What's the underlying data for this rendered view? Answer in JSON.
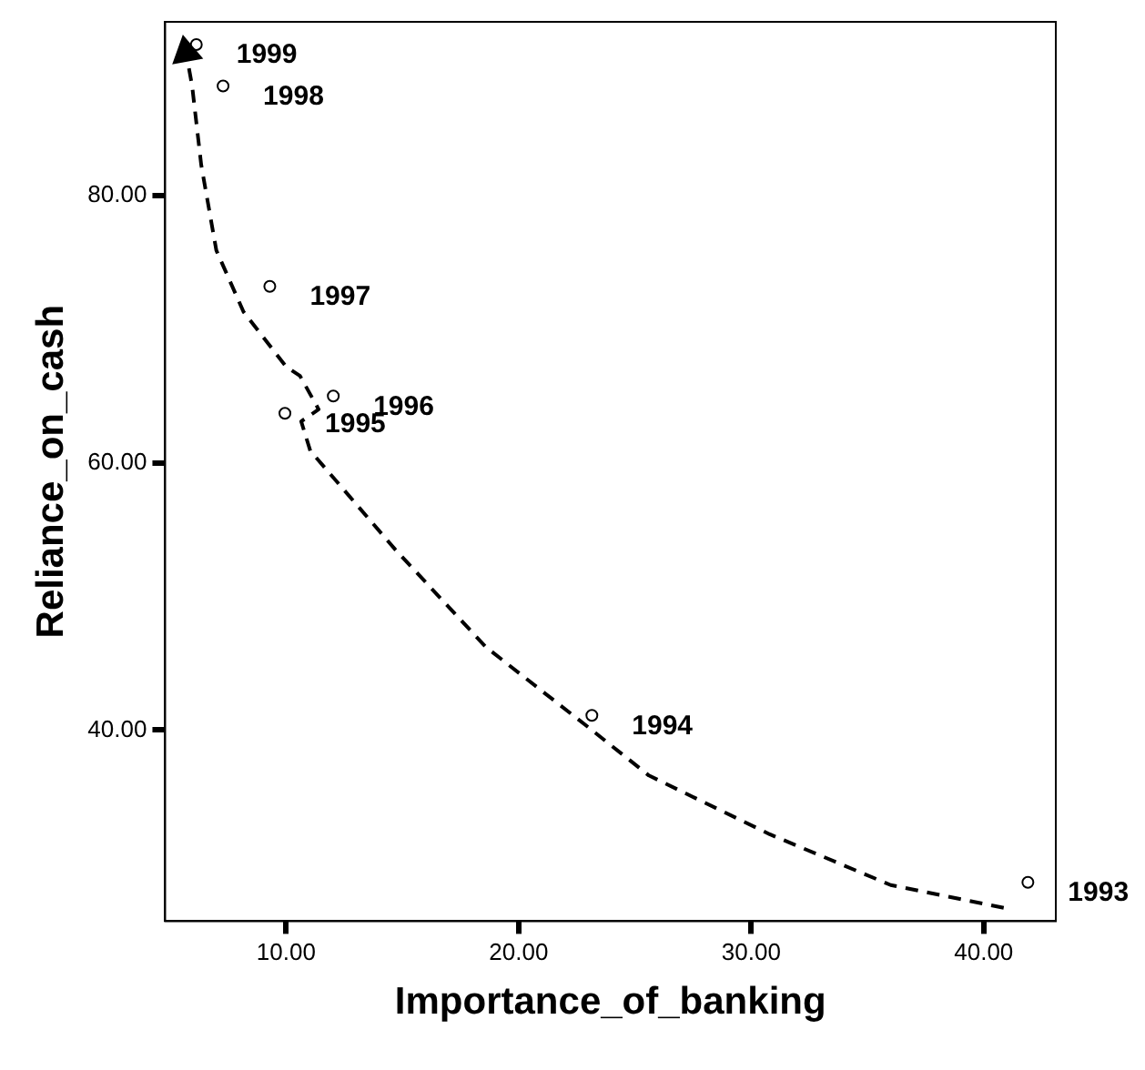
{
  "chart_data": {
    "type": "scatter",
    "xlabel": "Importance_of_banking",
    "ylabel": "Reliance_on_cash",
    "xlim": [
      4.8,
      43.1
    ],
    "ylim": [
      25.7,
      93
    ],
    "xticks": [
      {
        "value": 10,
        "label": "10.00"
      },
      {
        "value": 20,
        "label": "20.00"
      },
      {
        "value": 30,
        "label": "30.00"
      },
      {
        "value": 40,
        "label": "40.00"
      }
    ],
    "yticks": [
      {
        "value": 40,
        "label": "40.00"
      },
      {
        "value": 60,
        "label": "60.00"
      },
      {
        "value": 80,
        "label": "80.00"
      }
    ],
    "grid": false,
    "legend": false,
    "series": [
      {
        "color": "#000000",
        "marker": "circle",
        "x": [
          41.9,
          23.15,
          9.95,
          12.03,
          9.3,
          7.29,
          6.14
        ],
        "values": [
          28.6,
          41.1,
          63.7,
          65.0,
          73.2,
          88.2,
          91.3
        ]
      },
      {
        "type": "line",
        "color": "#000000",
        "marker": "none",
        "line_style": "dashed",
        "x": [
          40.86,
          36.0,
          30.8,
          25.6,
          23.15,
          18.6,
          14.7,
          11.04,
          10.65,
          11.4,
          10.6,
          10.0,
          8.17,
          7.0,
          6.35,
          5.96,
          5.7
        ],
        "values": [
          26.7,
          28.4,
          32.2,
          36.6,
          40.0,
          46.2,
          53.5,
          60.9,
          63.1,
          64.0,
          66.5,
          67.2,
          71.3,
          75.9,
          82.3,
          88.2,
          90.7
        ]
      }
    ],
    "annotations": [
      {
        "text": "1993",
        "x": 41.9,
        "y": 28.6
      },
      {
        "text": "1994",
        "x": 23.15,
        "y": 41.1
      },
      {
        "text": "1995",
        "x": 9.95,
        "y": 63.7
      },
      {
        "text": "1996",
        "x": 12.03,
        "y": 65.0
      },
      {
        "text": "1997",
        "x": 9.3,
        "y": 73.2
      },
      {
        "text": "1998",
        "x": 7.29,
        "y": 88.2
      },
      {
        "text": "1999",
        "x": 6.14,
        "y": 91.3
      }
    ]
  }
}
